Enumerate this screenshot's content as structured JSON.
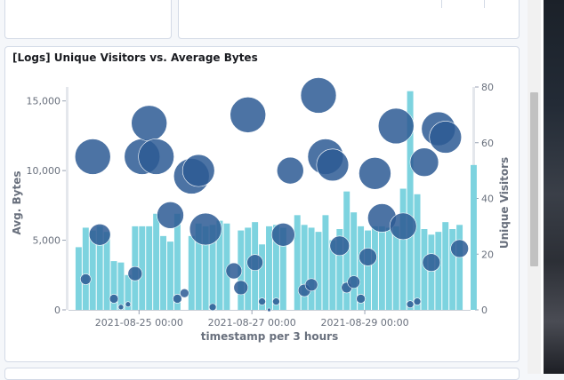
{
  "panel": {
    "title": "[Logs] Unique Visitors vs. Average Bytes"
  },
  "chart_data": {
    "type": "bar",
    "title": "[Logs] Unique Visitors vs. Average Bytes",
    "xlabel": "timestamp per 3 hours",
    "ylabel_left": "Avg. Bytes",
    "ylabel_right": "Unique Visitors",
    "x_domain": [
      "2021-08-23 18:00",
      "2021-08-30 21:00"
    ],
    "x_ticks": [
      "2021-08-25 00:00",
      "2021-08-27 00:00",
      "2021-08-29 00:00"
    ],
    "ylim_left": [
      0,
      16000
    ],
    "yticks_left": [
      "0",
      "5,000",
      "10,000",
      "15,000"
    ],
    "ylim_right": [
      0,
      80
    ],
    "yticks_right": [
      "0",
      "20",
      "40",
      "60",
      "80"
    ],
    "grid": false,
    "legend": "none",
    "colors": {
      "bars": "#6dccb1",
      "bubbles": "#3f6a9e"
    },
    "series": [
      {
        "kind": "bar",
        "axis": "left",
        "x": [
          "2021-08-23 21:00",
          "2021-08-24 00:00",
          "2021-08-24 03:00",
          "2021-08-24 06:00",
          "2021-08-24 09:00",
          "2021-08-24 12:00",
          "2021-08-24 15:00",
          "2021-08-24 18:00",
          "2021-08-24 21:00",
          "2021-08-25 00:00",
          "2021-08-25 03:00",
          "2021-08-25 06:00",
          "2021-08-25 09:00",
          "2021-08-25 12:00",
          "2021-08-25 15:00",
          "2021-08-25 18:00",
          "2021-08-25 21:00",
          "2021-08-26 00:00",
          "2021-08-26 03:00",
          "2021-08-26 06:00",
          "2021-08-26 09:00",
          "2021-08-26 12:00",
          "2021-08-26 15:00",
          "2021-08-26 18:00",
          "2021-08-26 21:00",
          "2021-08-27 00:00",
          "2021-08-27 03:00",
          "2021-08-27 06:00",
          "2021-08-27 09:00",
          "2021-08-27 12:00",
          "2021-08-27 15:00",
          "2021-08-27 18:00",
          "2021-08-27 21:00",
          "2021-08-28 00:00",
          "2021-08-28 03:00",
          "2021-08-28 06:00",
          "2021-08-28 09:00",
          "2021-08-28 12:00",
          "2021-08-28 15:00",
          "2021-08-28 18:00",
          "2021-08-28 21:00",
          "2021-08-29 00:00",
          "2021-08-29 03:00",
          "2021-08-29 06:00",
          "2021-08-29 09:00",
          "2021-08-29 12:00",
          "2021-08-29 15:00",
          "2021-08-29 18:00",
          "2021-08-29 21:00",
          "2021-08-30 00:00",
          "2021-08-30 03:00",
          "2021-08-30 06:00",
          "2021-08-30 09:00",
          "2021-08-30 12:00",
          "2021-08-30 15:00",
          "2021-08-30 21:00"
        ],
        "values": [
          4500,
          5900,
          5700,
          6000,
          5600,
          3500,
          3400,
          2500,
          6000,
          6000,
          6000,
          6900,
          5300,
          4900,
          6900,
          0,
          5300,
          6200,
          6000,
          6100,
          6400,
          6200,
          0,
          5700,
          5900,
          6300,
          4700,
          6000,
          6100,
          5900,
          0,
          6800,
          6100,
          5900,
          5600,
          6800,
          5000,
          5800,
          8500,
          7000,
          6000,
          5700,
          6000,
          6000,
          5900,
          6000,
          8700,
          15700,
          8300,
          5800,
          5400,
          5600,
          6300,
          5800,
          6100,
          10400
        ]
      },
      {
        "kind": "bubble",
        "axis": "right",
        "name": "Unique Visitors",
        "x": [
          "2021-08-24 00:00",
          "2021-08-24 03:00",
          "2021-08-24 06:00",
          "2021-08-24 12:00",
          "2021-08-24 15:00",
          "2021-08-24 18:00",
          "2021-08-24 21:00",
          "2021-08-25 00:00",
          "2021-08-25 03:00",
          "2021-08-25 06:00",
          "2021-08-25 12:00",
          "2021-08-25 15:00",
          "2021-08-25 18:00",
          "2021-08-25 21:00",
          "2021-08-26 00:00",
          "2021-08-26 03:00",
          "2021-08-26 06:00",
          "2021-08-26 15:00",
          "2021-08-26 18:00",
          "2021-08-26 21:00",
          "2021-08-27 00:00",
          "2021-08-27 03:00",
          "2021-08-27 06:00",
          "2021-08-27 09:00",
          "2021-08-27 12:00",
          "2021-08-27 15:00",
          "2021-08-27 21:00",
          "2021-08-28 00:00",
          "2021-08-28 03:00",
          "2021-08-28 06:00",
          "2021-08-28 09:00",
          "2021-08-28 12:00",
          "2021-08-28 15:00",
          "2021-08-28 18:00",
          "2021-08-28 21:00",
          "2021-08-29 00:00",
          "2021-08-29 03:00",
          "2021-08-29 06:00",
          "2021-08-29 12:00",
          "2021-08-29 15:00",
          "2021-08-29 18:00",
          "2021-08-29 21:00",
          "2021-08-30 00:00",
          "2021-08-30 03:00",
          "2021-08-30 06:00",
          "2021-08-30 09:00",
          "2021-08-30 15:00"
        ],
        "values": [
          11,
          55,
          27,
          4,
          1,
          2,
          13,
          55,
          67,
          55,
          34,
          4,
          6,
          48,
          50,
          29,
          1,
          14,
          8,
          70,
          17,
          3,
          0,
          3,
          27,
          50,
          7,
          9,
          77,
          55,
          52,
          23,
          8,
          10,
          4,
          19,
          49,
          33,
          66,
          30,
          2,
          3,
          53,
          17,
          65,
          62,
          22
        ],
        "sizes": [
          6,
          20,
          12,
          5,
          3,
          3,
          8,
          20,
          20,
          20,
          15,
          5,
          5,
          20,
          18,
          18,
          4,
          9,
          8,
          20,
          9,
          4,
          2,
          4,
          13,
          15,
          7,
          7,
          20,
          20,
          18,
          11,
          6,
          7,
          5,
          10,
          18,
          16,
          20,
          15,
          4,
          4,
          16,
          10,
          19,
          18,
          10
        ]
      }
    ]
  }
}
